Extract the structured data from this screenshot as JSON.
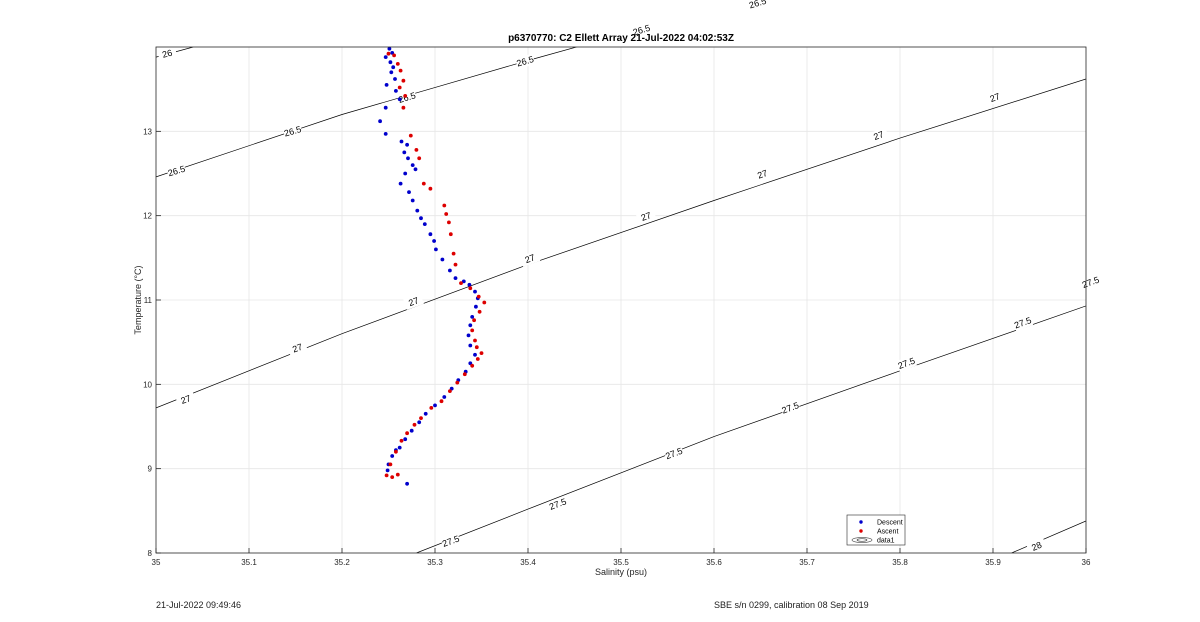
{
  "chart_data": {
    "type": "scatter",
    "title": "p6370770: C2 Ellett Array 21-Jul-2022 04:02:53Z",
    "xlabel": "Salinity (psu)",
    "ylabel": "Temperature (°C)",
    "xlim": [
      35,
      36
    ],
    "ylim": [
      8,
      14
    ],
    "xticks": [
      "35",
      "35.1",
      "35.2",
      "35.3",
      "35.4",
      "35.5",
      "35.6",
      "35.7",
      "35.8",
      "35.9",
      "36"
    ],
    "yticks": [
      "8",
      "9",
      "10",
      "11",
      "12",
      "13"
    ],
    "grid": true,
    "legend": {
      "position": "bottom-right",
      "entries": [
        "Descent",
        "Ascent",
        "data1"
      ]
    },
    "colors": {
      "descent": "#0000cc",
      "ascent": "#dd0000",
      "contour": "#000000",
      "grid": "#e6e6e6"
    },
    "contours": [
      {
        "level": "26",
        "points": [
          [
            35,
            13.88
          ],
          [
            35.04,
            14.0
          ]
        ],
        "labels": [
          [
            35.012,
            13.92
          ]
        ]
      },
      {
        "level": "26.5",
        "points": [
          [
            35,
            12.46
          ],
          [
            35.2,
            13.2
          ],
          [
            35.4,
            13.84
          ],
          [
            35.68,
            14.7
          ]
        ],
        "labels": [
          [
            35.022,
            12.53
          ],
          [
            35.147,
            13.0
          ],
          [
            35.27,
            13.4
          ],
          [
            35.397,
            13.83
          ],
          [
            35.522,
            14.2
          ],
          [
            35.647,
            14.52
          ]
        ]
      },
      {
        "level": "27",
        "points": [
          [
            35,
            9.72
          ],
          [
            35.2,
            10.6
          ],
          [
            35.4,
            11.42
          ],
          [
            35.6,
            12.18
          ],
          [
            35.8,
            12.92
          ],
          [
            36,
            13.62
          ]
        ],
        "labels": [
          [
            35.032,
            9.82
          ],
          [
            35.152,
            10.43
          ],
          [
            35.277,
            10.98
          ],
          [
            35.402,
            11.49
          ],
          [
            35.527,
            11.99
          ],
          [
            35.652,
            12.49
          ],
          [
            35.777,
            12.95
          ],
          [
            35.902,
            13.4
          ]
        ]
      },
      {
        "level": "27.5",
        "points": [
          [
            35.28,
            8.0
          ],
          [
            35.4,
            8.52
          ],
          [
            35.6,
            9.38
          ],
          [
            35.8,
            10.16
          ],
          [
            36,
            10.93
          ]
        ],
        "labels": [
          [
            35.317,
            8.14
          ],
          [
            35.432,
            8.58
          ],
          [
            35.557,
            9.18
          ],
          [
            35.682,
            9.72
          ],
          [
            35.807,
            10.25
          ],
          [
            35.932,
            10.73
          ],
          [
            36.005,
            11.21
          ]
        ]
      },
      {
        "level": "28",
        "points": [
          [
            35.92,
            8.0
          ],
          [
            36,
            8.38
          ]
        ],
        "labels": [
          [
            35.947,
            8.08
          ]
        ]
      }
    ],
    "series": [
      {
        "name": "Descent",
        "points": [
          [
            35.251,
            13.98
          ],
          [
            35.254,
            13.93
          ],
          [
            35.247,
            13.88
          ],
          [
            35.252,
            13.82
          ],
          [
            35.255,
            13.76
          ],
          [
            35.253,
            13.7
          ],
          [
            35.257,
            13.62
          ],
          [
            35.248,
            13.55
          ],
          [
            35.258,
            13.48
          ],
          [
            35.262,
            13.38
          ],
          [
            35.247,
            13.28
          ],
          [
            35.241,
            13.12
          ],
          [
            35.247,
            12.97
          ],
          [
            35.264,
            12.88
          ],
          [
            35.27,
            12.84
          ],
          [
            35.267,
            12.75
          ],
          [
            35.271,
            12.68
          ],
          [
            35.276,
            12.6
          ],
          [
            35.279,
            12.55
          ],
          [
            35.268,
            12.5
          ],
          [
            35.263,
            12.38
          ],
          [
            35.272,
            12.28
          ],
          [
            35.276,
            12.18
          ],
          [
            35.281,
            12.06
          ],
          [
            35.285,
            11.97
          ],
          [
            35.289,
            11.9
          ],
          [
            35.295,
            11.78
          ],
          [
            35.299,
            11.7
          ],
          [
            35.301,
            11.6
          ],
          [
            35.308,
            11.48
          ],
          [
            35.316,
            11.35
          ],
          [
            35.322,
            11.26
          ],
          [
            35.331,
            11.22
          ],
          [
            35.337,
            11.18
          ],
          [
            35.343,
            11.1
          ],
          [
            35.346,
            11.02
          ],
          [
            35.344,
            10.92
          ],
          [
            35.34,
            10.8
          ],
          [
            35.338,
            10.7
          ],
          [
            35.336,
            10.58
          ],
          [
            35.338,
            10.46
          ],
          [
            35.343,
            10.35
          ],
          [
            35.338,
            10.25
          ],
          [
            35.333,
            10.15
          ],
          [
            35.325,
            10.05
          ],
          [
            35.318,
            9.95
          ],
          [
            35.31,
            9.85
          ],
          [
            35.3,
            9.75
          ],
          [
            35.29,
            9.65
          ],
          [
            35.283,
            9.55
          ],
          [
            35.275,
            9.45
          ],
          [
            35.268,
            9.35
          ],
          [
            35.262,
            9.25
          ],
          [
            35.254,
            9.15
          ],
          [
            35.25,
            9.05
          ],
          [
            35.249,
            8.98
          ],
          [
            35.27,
            8.82
          ],
          [
            35.258,
            9.22
          ]
        ]
      },
      {
        "name": "Ascent",
        "points": [
          [
            35.25,
            13.92
          ],
          [
            35.256,
            13.9
          ],
          [
            35.26,
            13.8
          ],
          [
            35.263,
            13.72
          ],
          [
            35.266,
            13.6
          ],
          [
            35.262,
            13.52
          ],
          [
            35.268,
            13.42
          ],
          [
            35.266,
            13.28
          ],
          [
            35.274,
            12.95
          ],
          [
            35.28,
            12.78
          ],
          [
            35.283,
            12.68
          ],
          [
            35.288,
            12.38
          ],
          [
            35.295,
            12.32
          ],
          [
            35.31,
            12.12
          ],
          [
            35.312,
            12.02
          ],
          [
            35.315,
            11.92
          ],
          [
            35.317,
            11.78
          ],
          [
            35.32,
            11.55
          ],
          [
            35.322,
            11.42
          ],
          [
            35.328,
            11.2
          ],
          [
            35.338,
            11.14
          ],
          [
            35.347,
            11.04
          ],
          [
            35.353,
            10.97
          ],
          [
            35.348,
            10.86
          ],
          [
            35.342,
            10.76
          ],
          [
            35.34,
            10.64
          ],
          [
            35.343,
            10.52
          ],
          [
            35.345,
            10.44
          ],
          [
            35.35,
            10.37
          ],
          [
            35.346,
            10.3
          ],
          [
            35.34,
            10.22
          ],
          [
            35.332,
            10.12
          ],
          [
            35.324,
            10.02
          ],
          [
            35.316,
            9.92
          ],
          [
            35.307,
            9.8
          ],
          [
            35.296,
            9.72
          ],
          [
            35.285,
            9.6
          ],
          [
            35.278,
            9.52
          ],
          [
            35.27,
            9.42
          ],
          [
            35.264,
            9.33
          ],
          [
            35.258,
            9.2
          ],
          [
            35.252,
            9.05
          ],
          [
            35.248,
            8.92
          ],
          [
            35.254,
            8.9
          ],
          [
            35.26,
            8.93
          ]
        ]
      }
    ]
  },
  "footer": {
    "left": "21-Jul-2022 09:49:46",
    "right": "SBE s/n 0299, calibration 08 Sep 2019"
  }
}
